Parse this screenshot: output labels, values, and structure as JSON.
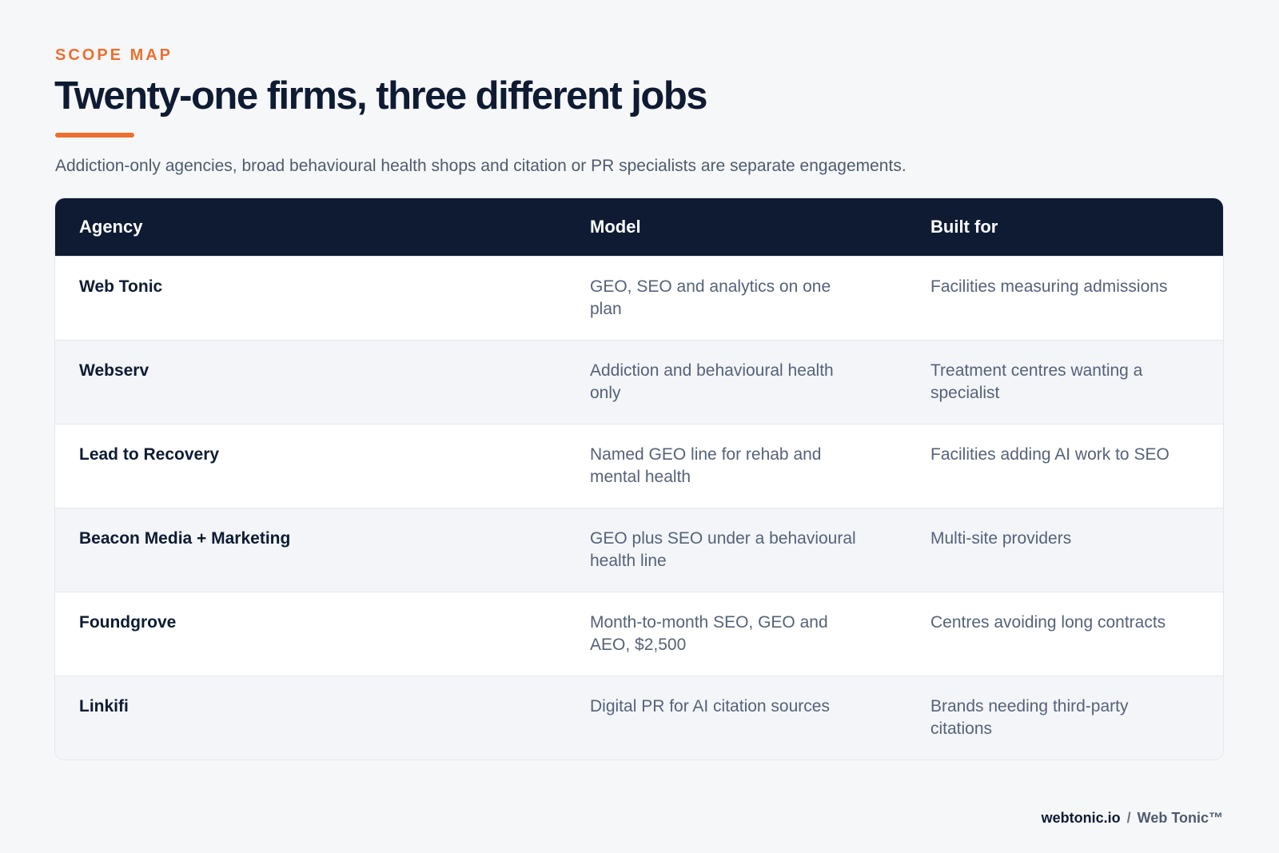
{
  "header": {
    "eyebrow": "SCOPE MAP",
    "title": "Twenty-one firms, three different jobs",
    "subtitle": "Addiction-only agencies, broad behavioural health shops and citation or PR specialists are separate engagements."
  },
  "table": {
    "columns": [
      "Agency",
      "Model",
      "Built for"
    ],
    "rows": [
      [
        "Web Tonic",
        "GEO, SEO and analytics on one plan",
        "Facilities measuring admissions"
      ],
      [
        "Webserv",
        "Addiction and behavioural health only",
        "Treatment centres wanting a specialist"
      ],
      [
        "Lead to Recovery",
        "Named GEO line for rehab and mental health",
        "Facilities adding AI work to SEO"
      ],
      [
        "Beacon Media + Marketing",
        "GEO plus SEO under a behavioural health line",
        "Multi-site providers"
      ],
      [
        "Foundgrove",
        "Month-to-month SEO, GEO and AEO, $2,500",
        "Centres avoiding long contracts"
      ],
      [
        "Linkifi",
        "Digital PR for AI citation sources",
        "Brands needing third-party citations"
      ]
    ]
  },
  "footer": {
    "site": "webtonic.io",
    "separator": "/",
    "brand": "Web Tonic™"
  }
}
